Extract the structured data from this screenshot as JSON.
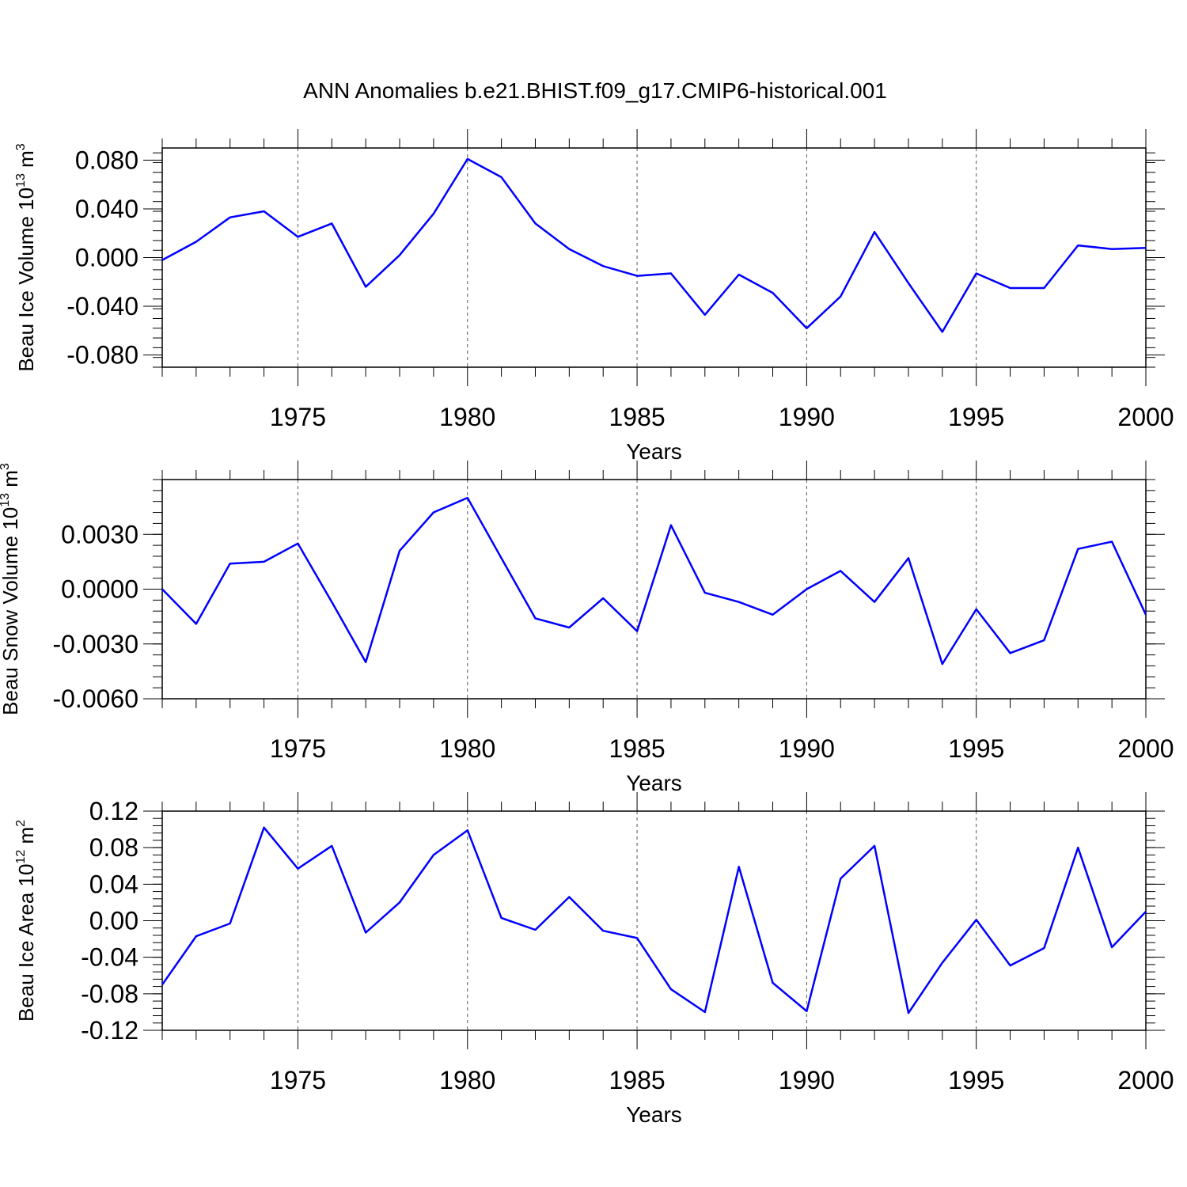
{
  "title": "ANN Anomalies b.e21.BHIST.f09_g17.CMIP6-historical.001",
  "line_color": "#0000ff",
  "chart_data": [
    {
      "type": "line",
      "ylabel_text": "Beau Ice Volume 10",
      "ylabel_exp": "13",
      "ylabel_unit": " m",
      "ylabel_unit_exp": "3",
      "xlabel": "Years",
      "xlim": [
        1971,
        2000
      ],
      "ylim": [
        -0.09,
        0.09
      ],
      "yticks": [
        -0.08,
        -0.04,
        0.0,
        0.04,
        0.08
      ],
      "ytick_labels": [
        "-0.080",
        "-0.040",
        "0.000",
        "0.040",
        "0.080"
      ],
      "yminor_step": 0.008,
      "xticks": [
        1975,
        1980,
        1985,
        1990,
        1995,
        2000
      ],
      "xtick_labels": [
        "1975",
        "1980",
        "1985",
        "1990",
        "1995",
        "2000"
      ],
      "x": [
        1971,
        1972,
        1973,
        1974,
        1975,
        1976,
        1977,
        1978,
        1979,
        1980,
        1981,
        1982,
        1983,
        1984,
        1985,
        1986,
        1987,
        1988,
        1989,
        1990,
        1991,
        1992,
        1993,
        1994,
        1995,
        1996,
        1997,
        1998,
        1999,
        2000
      ],
      "values": [
        -0.002,
        0.013,
        0.033,
        0.038,
        0.017,
        0.028,
        -0.024,
        0.002,
        0.036,
        0.081,
        0.066,
        0.028,
        0.007,
        -0.007,
        -0.015,
        -0.013,
        -0.047,
        -0.014,
        -0.029,
        -0.058,
        -0.032,
        0.021,
        -0.021,
        -0.061,
        -0.013,
        -0.025,
        -0.025,
        0.01,
        0.007,
        0.008
      ]
    },
    {
      "type": "line",
      "ylabel_text": "Beau Snow Volume 10",
      "ylabel_exp": "13",
      "ylabel_unit": " m",
      "ylabel_unit_exp": "3",
      "xlabel": "Years",
      "xlim": [
        1971,
        2000
      ],
      "ylim": [
        -0.006,
        0.006
      ],
      "yticks": [
        -0.006,
        -0.003,
        0.0,
        0.003
      ],
      "ytick_labels": [
        "-0.0060",
        "-0.0030",
        "0.0000",
        "0.0030"
      ],
      "yminor_step": 0.0006,
      "xticks": [
        1975,
        1980,
        1985,
        1990,
        1995,
        2000
      ],
      "xtick_labels": [
        "1975",
        "1980",
        "1985",
        "1990",
        "1995",
        "2000"
      ],
      "x": [
        1971,
        1972,
        1973,
        1974,
        1975,
        1976,
        1977,
        1978,
        1979,
        1980,
        1981,
        1982,
        1983,
        1984,
        1985,
        1986,
        1987,
        1988,
        1989,
        1990,
        1991,
        1992,
        1993,
        1994,
        1995,
        1996,
        1997,
        1998,
        1999,
        2000
      ],
      "values": [
        0.0,
        -0.0019,
        0.0014,
        0.0015,
        0.0025,
        -0.0007,
        -0.004,
        0.0021,
        0.0042,
        0.005,
        0.0017,
        -0.0016,
        -0.0021,
        -0.0005,
        -0.0023,
        0.0035,
        -0.0002,
        -0.0007,
        -0.0014,
        0.0,
        0.001,
        -0.0007,
        0.0017,
        -0.0041,
        -0.0011,
        -0.0035,
        -0.0028,
        0.0022,
        0.0026,
        -0.0014
      ]
    },
    {
      "type": "line",
      "ylabel_text": "Beau Ice Area 10",
      "ylabel_exp": "12",
      "ylabel_unit": " m",
      "ylabel_unit_exp": "2",
      "xlabel": "Years",
      "xlim": [
        1971,
        2000
      ],
      "ylim": [
        -0.12,
        0.12
      ],
      "yticks": [
        -0.12,
        -0.08,
        -0.04,
        0.0,
        0.04,
        0.08,
        0.12
      ],
      "ytick_labels": [
        "-0.12",
        "-0.08",
        "-0.04",
        "0.00",
        "0.04",
        "0.08",
        "0.12"
      ],
      "yminor_step": 0.008,
      "xticks": [
        1975,
        1980,
        1985,
        1990,
        1995,
        2000
      ],
      "xtick_labels": [
        "1975",
        "1980",
        "1985",
        "1990",
        "1995",
        "2000"
      ],
      "x": [
        1971,
        1972,
        1973,
        1974,
        1975,
        1976,
        1977,
        1978,
        1979,
        1980,
        1981,
        1982,
        1983,
        1984,
        1985,
        1986,
        1987,
        1988,
        1989,
        1990,
        1991,
        1992,
        1993,
        1994,
        1995,
        1996,
        1997,
        1998,
        1999,
        2000
      ],
      "values": [
        -0.07,
        -0.017,
        -0.003,
        0.102,
        0.057,
        0.082,
        -0.013,
        0.02,
        0.072,
        0.099,
        0.003,
        -0.01,
        0.026,
        -0.011,
        -0.019,
        -0.075,
        -0.1,
        0.059,
        -0.068,
        -0.099,
        0.046,
        0.082,
        -0.101,
        -0.046,
        0.001,
        -0.049,
        -0.03,
        0.08,
        -0.029,
        0.01
      ]
    }
  ]
}
